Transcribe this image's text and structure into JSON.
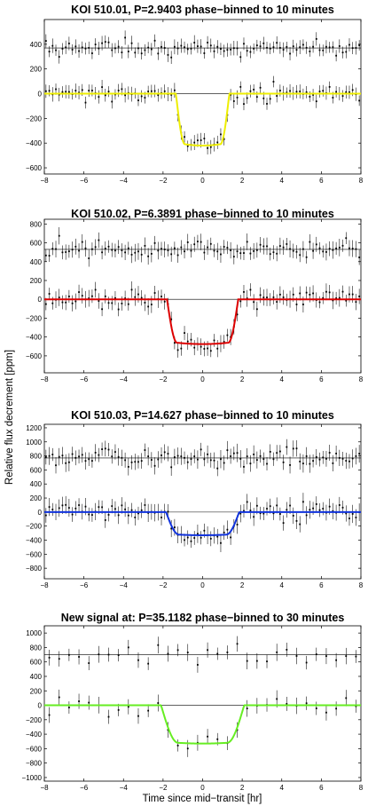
{
  "figure": {
    "ylabel": "Relative flux decrement [ppm]",
    "xlabel": "Time since mid−transit [hr]"
  },
  "chart_data": [
    {
      "type": "scatter",
      "title": "KOI 510.01, P=2.9403 phase−binned to 10 minutes",
      "xlim": [
        -8,
        8
      ],
      "ylim": [
        -650,
        600
      ],
      "x_ticks": [
        -8,
        -6,
        -4,
        -2,
        0,
        2,
        4,
        6,
        8
      ],
      "y_ticks": [
        -600,
        -400,
        -200,
        0,
        200,
        400
      ],
      "x_tick_labels": [
        "−8",
        "−6",
        "−4",
        "−2",
        "0",
        "2",
        "4",
        "6",
        "8"
      ],
      "y_tick_labels": [
        "−600",
        "−400",
        "−200",
        "0",
        "200",
        "400"
      ],
      "offset_baseline": 370,
      "transit_depth": 420,
      "transit_half_duration": 1.35,
      "ingress": 0.45,
      "bin_minutes": 10,
      "noise": 55,
      "model_color": "#eeee00",
      "grid": false
    },
    {
      "type": "scatter",
      "title": "KOI 510.02, P=6.3891 phase−binned to 10 minutes",
      "xlim": [
        -8,
        8
      ],
      "ylim": [
        -780,
        850
      ],
      "x_ticks": [
        -8,
        -6,
        -4,
        -2,
        0,
        2,
        4,
        6,
        8
      ],
      "y_ticks": [
        -600,
        -400,
        -200,
        0,
        200,
        400,
        600,
        800
      ],
      "x_tick_labels": [
        "−8",
        "−6",
        "−4",
        "−2",
        "0",
        "2",
        "4",
        "6",
        "8"
      ],
      "y_tick_labels": [
        "−600",
        "−400",
        "−200",
        "0",
        "200",
        "400",
        "600",
        "800"
      ],
      "offset_baseline": 530,
      "transit_depth": 475,
      "transit_half_duration": 1.8,
      "ingress": 0.5,
      "bin_minutes": 10,
      "noise": 85,
      "model_color": "#dd0000",
      "grid": false
    },
    {
      "type": "scatter",
      "title": "KOI 510.03, P=14.627 phase−binned to 10 minutes",
      "xlim": [
        -8,
        8
      ],
      "ylim": [
        -950,
        1250
      ],
      "x_ticks": [
        -8,
        -6,
        -4,
        -2,
        0,
        2,
        4,
        6,
        8
      ],
      "y_ticks": [
        -800,
        -600,
        -400,
        -200,
        0,
        200,
        400,
        600,
        800,
        1000,
        1200
      ],
      "x_tick_labels": [
        "−8",
        "−6",
        "−4",
        "−2",
        "0",
        "2",
        "4",
        "6",
        "8"
      ],
      "y_tick_labels": [
        "−800",
        "−600",
        "−400",
        "−200",
        "0",
        "200",
        "400",
        "600",
        "800",
        "1000",
        "1200"
      ],
      "offset_baseline": 770,
      "transit_depth": 330,
      "transit_half_duration": 1.85,
      "ingress": 0.65,
      "bin_minutes": 10,
      "noise": 120,
      "model_color": "#1133dd",
      "grid": false
    },
    {
      "type": "scatter",
      "title": "New signal at: P=35.1182 phase−binned to 30 minutes",
      "xlim": [
        -8,
        8
      ],
      "ylim": [
        -1050,
        1100
      ],
      "x_ticks": [
        -8,
        -6,
        -4,
        -2,
        0,
        2,
        4,
        6,
        8
      ],
      "y_ticks": [
        -1000,
        -800,
        -600,
        -400,
        -200,
        0,
        200,
        400,
        600,
        800,
        1000
      ],
      "x_tick_labels": [
        "−8",
        "−6",
        "−4",
        "−2",
        "0",
        "2",
        "4",
        "6",
        "8"
      ],
      "y_tick_labels": [
        "−1000",
        "−800",
        "−600",
        "−400",
        "−200",
        "0",
        "200",
        "400",
        "600",
        "800",
        "1000"
      ],
      "offset_baseline": 700,
      "transit_depth": 530,
      "transit_half_duration": 2.1,
      "ingress": 0.85,
      "bin_minutes": 30,
      "noise": 110,
      "model_color": "#66ee22",
      "grid": false
    }
  ]
}
